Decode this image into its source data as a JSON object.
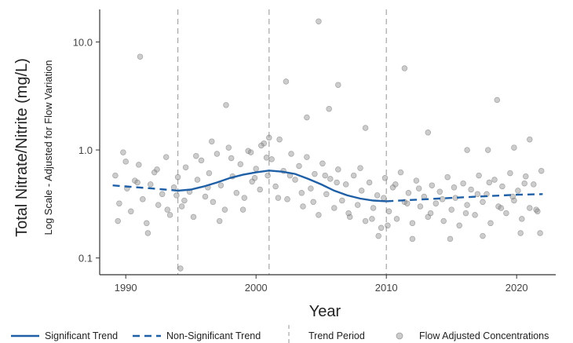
{
  "chart_data": {
    "type": "scatter",
    "title": "",
    "xlabel": "Year",
    "ylabel": "Total Nitrate/Nitrite (mg/L)",
    "ylabel_secondary": "Log Scale - Adjusted for Flow Variation",
    "y_scale": "log",
    "xlim": [
      1988,
      2023
    ],
    "ylim": [
      0.07,
      20
    ],
    "x_ticks": [
      1990,
      2000,
      2010,
      2020
    ],
    "x_tick_labels": [
      "1990",
      "2000",
      "2010",
      "2020"
    ],
    "y_ticks": [
      0.1,
      1.0,
      10.0
    ],
    "y_tick_labels": [
      "0.1",
      "1.0",
      "10.0"
    ],
    "grid": false,
    "legend_position": "bottom",
    "colors": {
      "trend": "#1f5fa6",
      "period": "#a6a6a6",
      "points_fill": "#8f8f8f",
      "points_stroke": "#6f6f6f",
      "axis": "#333333"
    },
    "trend_periods": [
      1994,
      2001,
      2010
    ],
    "significant_trend": {
      "name": "Significant Trend",
      "x": [
        1994,
        1995,
        1996,
        1997,
        1998,
        1999,
        2000,
        2001,
        2002,
        2003,
        2004,
        2005,
        2006,
        2007,
        2008,
        2009,
        2010
      ],
      "y": [
        0.42,
        0.43,
        0.46,
        0.5,
        0.55,
        0.59,
        0.62,
        0.645,
        0.63,
        0.6,
        0.54,
        0.48,
        0.42,
        0.38,
        0.355,
        0.34,
        0.335
      ]
    },
    "non_significant_trend": [
      {
        "name": "Non-Significant Trend",
        "x": [
          1989,
          1990,
          1991,
          1992,
          1993,
          1994
        ],
        "y": [
          0.47,
          0.46,
          0.45,
          0.44,
          0.43,
          0.42
        ]
      },
      {
        "name": "Non-Significant Trend",
        "x": [
          2010,
          2012,
          2014,
          2016,
          2018,
          2020,
          2022
        ],
        "y": [
          0.335,
          0.345,
          0.355,
          0.365,
          0.375,
          0.385,
          0.39
        ]
      }
    ],
    "points": {
      "name": "Flow Adjusted Concentrations",
      "x": [
        1989.2,
        1989.5,
        1989.8,
        1990.1,
        1990.4,
        1990.7,
        1991.0,
        1991.3,
        1991.6,
        1991.9,
        1992.2,
        1992.5,
        1992.8,
        1993.1,
        1993.4,
        1993.7,
        1994.0,
        1994.3,
        1994.6,
        1994.9,
        1995.2,
        1995.5,
        1995.8,
        1996.1,
        1996.4,
        1996.7,
        1997.0,
        1997.3,
        1997.6,
        1997.9,
        1998.2,
        1998.5,
        1998.8,
        1999.1,
        1999.4,
        1999.7,
        2000.0,
        2000.3,
        2000.6,
        2000.9,
        2001.2,
        2001.5,
        2001.8,
        2002.1,
        2002.4,
        2002.7,
        2003.0,
        2003.3,
        2003.6,
        2003.9,
        2004.2,
        2004.5,
        2004.8,
        2005.1,
        2005.4,
        2005.7,
        2006.0,
        2006.3,
        2006.6,
        2006.9,
        2007.2,
        2007.5,
        2007.8,
        2008.1,
        2008.4,
        2008.7,
        2009.0,
        2009.3,
        2009.6,
        2009.9,
        2010.2,
        2010.5,
        2010.8,
        2011.1,
        2011.4,
        2011.7,
        2012.0,
        2012.3,
        2012.6,
        2012.9,
        2013.2,
        2013.5,
        2013.8,
        2014.1,
        2014.4,
        2014.7,
        2015.0,
        2015.3,
        2015.6,
        2015.9,
        2016.2,
        2016.5,
        2016.8,
        2017.1,
        2017.4,
        2017.7,
        2018.0,
        2018.3,
        2018.6,
        2018.9,
        2019.2,
        2019.5,
        2019.8,
        2020.1,
        2020.4,
        2020.7,
        2021.0,
        2021.3,
        2021.6,
        2021.9,
        1989.4,
        1990.0,
        1990.9,
        1991.7,
        1992.4,
        1993.2,
        1993.9,
        1994.5,
        1995.4,
        1996.3,
        1997.2,
        1998.1,
        1999.0,
        1999.9,
        2000.8,
        2001.7,
        2002.6,
        2003.5,
        2004.4,
        2005.3,
        2006.2,
        2007.1,
        2008.0,
        2008.9,
        2009.8,
        2010.7,
        2011.6,
        2012.5,
        2013.4,
        2014.3,
        2015.2,
        2016.1,
        2017.0,
        2017.9,
        2018.8,
        2019.7,
        2020.6,
        2021.5,
        1991.1,
        1994.2,
        1997.7,
        2002.3,
        2003.9,
        2004.8,
        2005.6,
        2006.3,
        2008.4,
        2011.4,
        2013.2,
        2016.2,
        2017.8,
        2018.5,
        2021.0,
        2019.8,
        2001.0,
        2000.4,
        1996.6,
        1999.6,
        2009.4,
        2010.1,
        2012.0,
        2014.9,
        2017.4,
        2020.3,
        2021.8
      ],
      "y": [
        0.58,
        0.32,
        0.95,
        0.44,
        0.27,
        0.52,
        0.73,
        0.35,
        0.21,
        0.48,
        0.62,
        0.31,
        0.39,
        0.86,
        0.25,
        0.45,
        0.56,
        0.3,
        0.69,
        0.41,
        0.24,
        0.53,
        0.8,
        0.37,
        0.61,
        0.33,
        0.92,
        0.47,
        0.28,
        1.05,
        0.57,
        0.4,
        0.74,
        0.36,
        0.98,
        0.51,
        0.67,
        0.43,
        1.15,
        0.58,
        0.82,
        0.46,
        1.25,
        0.64,
        0.35,
        0.92,
        0.53,
        0.71,
        0.3,
        0.86,
        0.44,
        0.6,
        0.25,
        0.75,
        0.39,
        0.54,
        0.29,
        0.66,
        0.34,
        0.48,
        0.24,
        0.58,
        0.31,
        0.42,
        0.22,
        0.5,
        0.29,
        0.38,
        0.19,
        0.55,
        0.27,
        0.45,
        0.23,
        0.62,
        0.33,
        0.4,
        0.21,
        0.52,
        0.3,
        0.37,
        0.24,
        0.47,
        0.32,
        0.41,
        0.22,
        0.56,
        0.28,
        0.36,
        0.2,
        0.49,
        0.31,
        0.43,
        0.25,
        0.58,
        0.33,
        0.39,
        0.21,
        0.53,
        0.3,
        0.46,
        0.26,
        0.61,
        0.34,
        0.42,
        0.23,
        0.57,
        0.29,
        0.48,
        0.27,
        0.64,
        0.22,
        0.78,
        0.5,
        0.17,
        0.66,
        0.28,
        0.38,
        0.34,
        0.88,
        0.45,
        0.22,
        0.84,
        0.28,
        0.55,
        0.85,
        0.36,
        0.58,
        0.4,
        0.33,
        0.58,
        0.5,
        0.26,
        0.68,
        0.23,
        0.36,
        0.48,
        0.32,
        0.44,
        0.26,
        0.35,
        0.45,
        0.26,
        0.39,
        0.5,
        0.29,
        0.37,
        0.49,
        0.28,
        7.3,
        0.08,
        2.6,
        4.3,
        2.0,
        15.5,
        2.4,
        4.0,
        1.6,
        5.7,
        1.45,
        1.0,
        1.0,
        2.9,
        1.25,
        1.05,
        1.3,
        1.1,
        1.2,
        0.95,
        0.16,
        0.2,
        0.15,
        0.15,
        0.16,
        0.17,
        0.17
      ]
    },
    "legend": [
      {
        "key": "significant",
        "label": "Significant Trend"
      },
      {
        "key": "non_significant",
        "label": "Non-Significant Trend"
      },
      {
        "key": "period",
        "label": "Trend Period"
      },
      {
        "key": "points",
        "label": "Flow Adjusted Concentrations"
      }
    ]
  }
}
